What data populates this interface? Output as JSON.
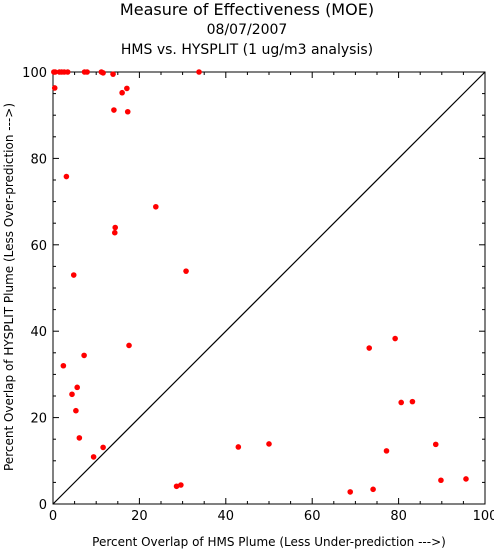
{
  "chart_data": {
    "type": "scatter",
    "title": "Measure of Effectiveness (MOE)",
    "subtitle_date": "08/07/2007",
    "subtitle_analysis": "HMS vs. HYSPLIT  (1 ug/m3 analysis)",
    "xlabel": "Percent Overlap of HMS Plume (Less Under-prediction --->)",
    "ylabel": "Percent Overlap of HYSPLIT Plume (Less Over-prediction --->)",
    "xlim": [
      0,
      100
    ],
    "ylim": [
      0,
      100
    ],
    "x_ticks": [
      0,
      20,
      40,
      60,
      80,
      100
    ],
    "y_ticks": [
      0,
      20,
      40,
      60,
      80,
      100
    ],
    "reference_line": "diagonal y = x",
    "grid": false,
    "legend": "none",
    "marker_color": "#ff0000",
    "axis_color": "#000000",
    "points": [
      {
        "x": 0.2,
        "y": 100
      },
      {
        "x": 0.5,
        "y": 100
      },
      {
        "x": 1.5,
        "y": 100
      },
      {
        "x": 2.0,
        "y": 100
      },
      {
        "x": 2.6,
        "y": 100
      },
      {
        "x": 3.4,
        "y": 100
      },
      {
        "x": 7.3,
        "y": 100
      },
      {
        "x": 7.9,
        "y": 100
      },
      {
        "x": 11.2,
        "y": 100
      },
      {
        "x": 11.6,
        "y": 99.8
      },
      {
        "x": 13.9,
        "y": 99.5
      },
      {
        "x": 33.8,
        "y": 100
      },
      {
        "x": 0.4,
        "y": 96.3
      },
      {
        "x": 17.1,
        "y": 96.2
      },
      {
        "x": 16.0,
        "y": 95.2
      },
      {
        "x": 14.1,
        "y": 91.2
      },
      {
        "x": 17.3,
        "y": 90.8
      },
      {
        "x": 3.1,
        "y": 75.8
      },
      {
        "x": 23.8,
        "y": 68.8
      },
      {
        "x": 14.4,
        "y": 64.0
      },
      {
        "x": 14.3,
        "y": 62.8
      },
      {
        "x": 30.8,
        "y": 53.9
      },
      {
        "x": 4.8,
        "y": 53.0
      },
      {
        "x": 17.6,
        "y": 36.7
      },
      {
        "x": 7.2,
        "y": 34.4
      },
      {
        "x": 2.4,
        "y": 32.0
      },
      {
        "x": 5.6,
        "y": 27.0
      },
      {
        "x": 4.4,
        "y": 25.4
      },
      {
        "x": 5.3,
        "y": 21.6
      },
      {
        "x": 6.1,
        "y": 15.3
      },
      {
        "x": 11.6,
        "y": 13.1
      },
      {
        "x": 9.4,
        "y": 10.9
      },
      {
        "x": 28.6,
        "y": 4.1
      },
      {
        "x": 29.6,
        "y": 4.4
      },
      {
        "x": 42.9,
        "y": 13.2
      },
      {
        "x": 50.0,
        "y": 13.9
      },
      {
        "x": 68.8,
        "y": 2.8
      },
      {
        "x": 74.1,
        "y": 3.4
      },
      {
        "x": 73.2,
        "y": 36.1
      },
      {
        "x": 79.2,
        "y": 38.3
      },
      {
        "x": 80.6,
        "y": 23.5
      },
      {
        "x": 83.2,
        "y": 23.7
      },
      {
        "x": 77.2,
        "y": 12.3
      },
      {
        "x": 88.6,
        "y": 13.8
      },
      {
        "x": 89.8,
        "y": 5.5
      },
      {
        "x": 95.6,
        "y": 5.8
      }
    ]
  }
}
